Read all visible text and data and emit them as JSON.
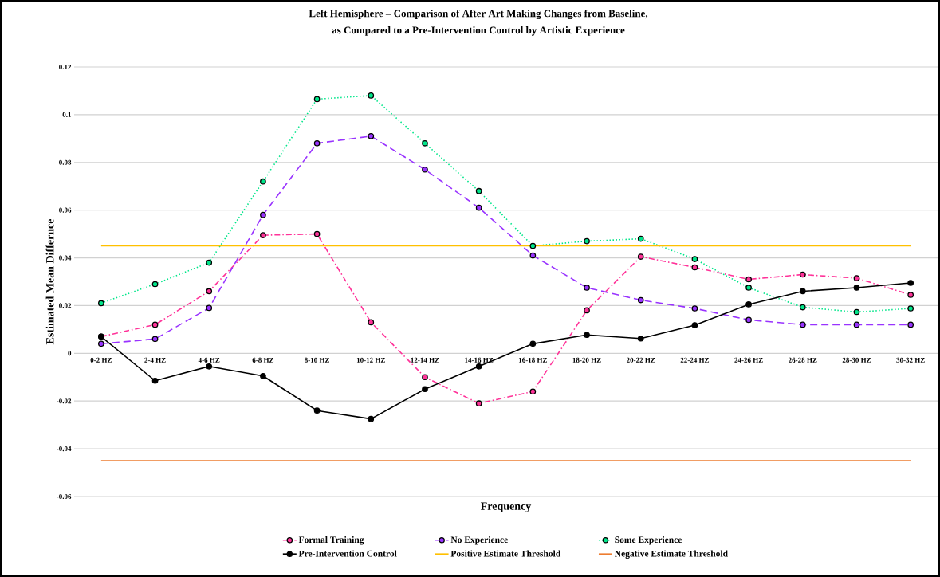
{
  "chart_data": {
    "type": "line",
    "title": "Left Hemisphere – Comparison of After Art Making Changes from Baseline,",
    "subtitle": "as Compared to a Pre-Intervention Control by Artistic Experience",
    "xlabel": "Frequency",
    "ylabel": "Estimated Mean Differnce",
    "categories": [
      "0-2 HZ",
      "2-4 HZ",
      "4-6 HZ",
      "6-8 HZ",
      "8-10 HZ",
      "10-12 HZ",
      "12-14 HZ",
      "14-16 HZ",
      "16-18 HZ",
      "18-20 HZ",
      "20-22 HZ",
      "22-24 HZ",
      "24-26 HZ",
      "26-28 HZ",
      "28-30 HZ",
      "30-32 HZ"
    ],
    "series": [
      {
        "name": "Formal Training",
        "color": "#ff3399",
        "line_style": "dashdot",
        "marker": "circle",
        "values": [
          0.007,
          0.012,
          0.026,
          0.0495,
          0.05,
          0.013,
          -0.01,
          -0.021,
          -0.016,
          0.018,
          0.0405,
          0.036,
          0.031,
          0.033,
          0.0315,
          0.0245
        ]
      },
      {
        "name": "No Experience",
        "color": "#9933ff",
        "line_style": "dashed",
        "marker": "circle",
        "values": [
          0.004,
          0.006,
          0.019,
          0.058,
          0.088,
          0.091,
          0.077,
          0.061,
          0.041,
          0.0275,
          0.0223,
          0.0188,
          0.014,
          0.012,
          0.012,
          0.012
        ]
      },
      {
        "name": "Some Experience",
        "color": "#00e68a",
        "line_style": "dotted",
        "marker": "circle",
        "values": [
          0.021,
          0.029,
          0.038,
          0.072,
          0.1065,
          0.108,
          0.088,
          0.068,
          0.045,
          0.047,
          0.048,
          0.0395,
          0.0275,
          0.0193,
          0.0173,
          0.0188
        ]
      },
      {
        "name": "Pre-Intervention Control",
        "color": "#000000",
        "line_style": "solid",
        "marker": "circle",
        "values": [
          0.007,
          -0.0115,
          -0.0055,
          -0.0095,
          -0.024,
          -0.0275,
          -0.015,
          -0.0055,
          0.004,
          0.0077,
          0.0062,
          0.0118,
          0.0205,
          0.026,
          0.0275,
          0.0295
        ]
      },
      {
        "name": "Positive Estimate Threshold",
        "color": "#ffc000",
        "line_style": "solid",
        "marker": "none",
        "values": [
          0.045,
          0.045,
          0.045,
          0.045,
          0.045,
          0.045,
          0.045,
          0.045,
          0.045,
          0.045,
          0.045,
          0.045,
          0.045,
          0.045,
          0.045,
          0.045
        ]
      },
      {
        "name": "Negative Estimate Threshold",
        "color": "#ed7d31",
        "line_style": "solid",
        "marker": "none",
        "values": [
          -0.045,
          -0.045,
          -0.045,
          -0.045,
          -0.045,
          -0.045,
          -0.045,
          -0.045,
          -0.045,
          -0.045,
          -0.045,
          -0.045,
          -0.045,
          -0.045,
          -0.045,
          -0.045
        ]
      }
    ],
    "ylim": [
      -0.06,
      0.12
    ],
    "yticks": [
      -0.06,
      -0.04,
      -0.02,
      0,
      0.02,
      0.04,
      0.06,
      0.08,
      0.1,
      0.12
    ],
    "grid": "y",
    "legend": "bottom"
  }
}
